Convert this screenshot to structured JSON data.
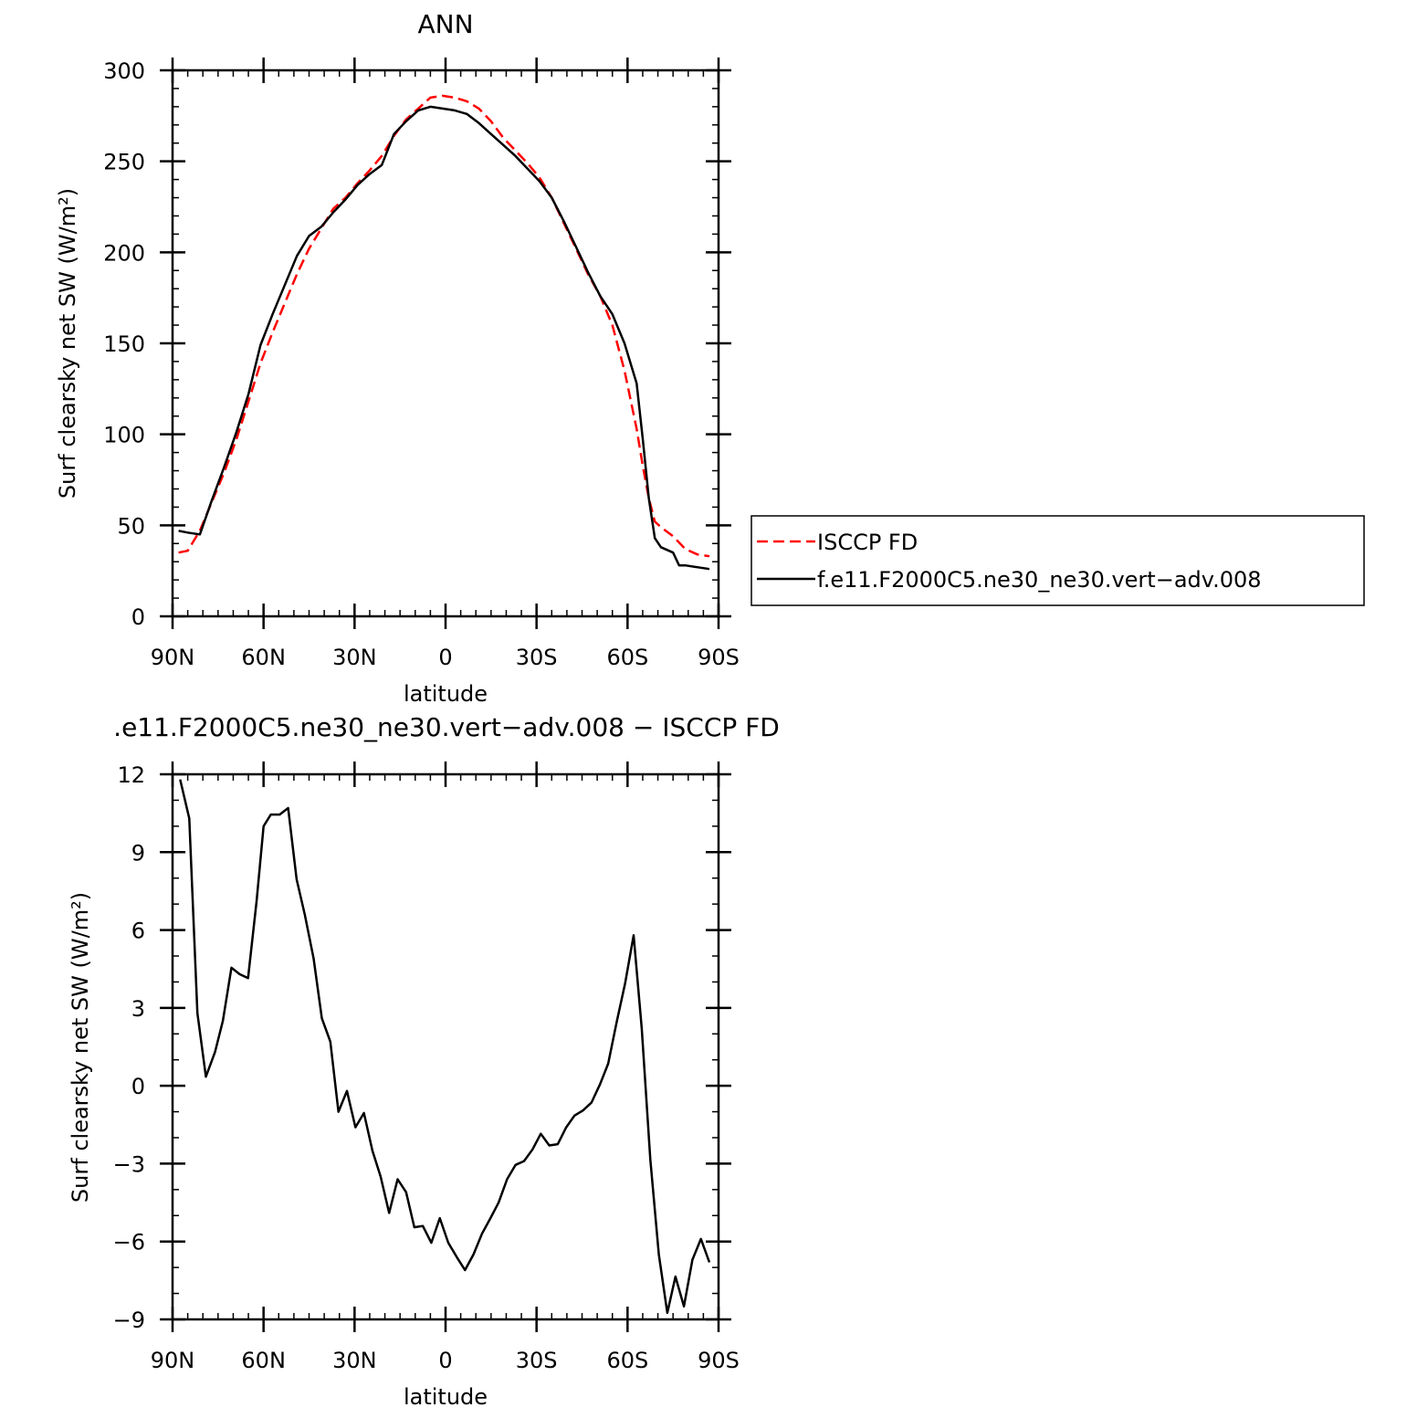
{
  "chart_data": [
    {
      "type": "line",
      "title": "ANN",
      "xlabel": "latitude",
      "ylabel": "Surf clearsky net SW (W/m²)",
      "x_axis_reversed": true,
      "xlim": [
        -90,
        90
      ],
      "ylim": [
        0,
        300
      ],
      "x_ticks": [
        {
          "value": 90,
          "label": "90N"
        },
        {
          "value": 60,
          "label": "60N"
        },
        {
          "value": 30,
          "label": "30N"
        },
        {
          "value": 0,
          "label": "0"
        },
        {
          "value": -30,
          "label": "30S"
        },
        {
          "value": -60,
          "label": "60S"
        },
        {
          "value": -90,
          "label": "90S"
        }
      ],
      "y_ticks": [
        {
          "value": 0,
          "label": "0"
        },
        {
          "value": 50,
          "label": "50"
        },
        {
          "value": 100,
          "label": "100"
        },
        {
          "value": 150,
          "label": "150"
        },
        {
          "value": 200,
          "label": "200"
        },
        {
          "value": 250,
          "label": "250"
        },
        {
          "value": 300,
          "label": "300"
        }
      ],
      "legend": {
        "placement": "right, outside plot, beside lower part"
      },
      "series": [
        {
          "name": "ISCCP FD",
          "color": "#ff0000",
          "dash": "dashed",
          "x": [
            88,
            85,
            81,
            77,
            73,
            69,
            65,
            61,
            57,
            53,
            49,
            45,
            41,
            37,
            33,
            29,
            25,
            21,
            17,
            13,
            9,
            5,
            1,
            -3,
            -7,
            -11,
            -15,
            -19,
            -23,
            -27,
            -31,
            -35,
            -39,
            -43,
            -47,
            -51,
            -55,
            -59,
            -63,
            -65,
            -67,
            -69,
            -71,
            -75,
            -79,
            -83,
            -87
          ],
          "y": [
            35,
            36,
            47,
            63,
            79,
            97,
            118,
            139,
            156,
            172,
            188,
            202,
            213,
            224,
            230,
            238,
            245,
            253,
            264,
            273,
            279,
            285,
            286,
            285,
            283,
            279,
            272,
            263,
            256,
            249,
            241,
            230,
            216,
            202,
            188,
            176,
            160,
            135,
            103,
            83,
            65,
            52,
            49,
            44,
            37,
            34,
            33
          ]
        },
        {
          "name": "f.e11.F2000C5.ne30_ne30.vert-adv.008",
          "color": "#000000",
          "dash": "solid",
          "x": [
            88,
            85,
            81,
            77,
            73,
            69,
            65,
            61,
            57,
            53,
            49,
            45,
            41,
            37,
            33,
            29,
            25,
            21,
            17,
            13,
            9,
            5,
            1,
            -3,
            -7,
            -11,
            -15,
            -19,
            -23,
            -27,
            -31,
            -35,
            -39,
            -43,
            -47,
            -51,
            -55,
            -59,
            -63,
            -65,
            -67,
            -69,
            -71,
            -75,
            -77,
            -79,
            -83,
            -87
          ],
          "y": [
            47,
            46,
            45,
            64,
            82,
            101,
            122,
            149,
            166,
            182,
            198,
            209,
            214,
            222,
            229,
            237,
            243,
            248,
            265,
            272,
            278,
            280,
            279,
            278,
            276,
            271,
            265,
            259,
            253,
            246,
            239,
            230,
            217,
            203,
            189,
            176,
            166,
            150,
            128,
            98,
            65,
            43,
            38,
            35,
            28,
            28,
            27,
            26
          ]
        }
      ]
    },
    {
      "type": "line",
      "title": ".e11.F2000C5.ne30_ne30.vert−adv.008 − ISCCP FD",
      "xlabel": "latitude",
      "ylabel": "Surf clearsky net SW (W/m²)",
      "x_axis_reversed": true,
      "xlim": [
        -90,
        90
      ],
      "ylim": [
        -9,
        12
      ],
      "x_ticks": [
        {
          "value": 90,
          "label": "90N"
        },
        {
          "value": 60,
          "label": "60N"
        },
        {
          "value": 30,
          "label": "30N"
        },
        {
          "value": 0,
          "label": "0"
        },
        {
          "value": -30,
          "label": "30S"
        },
        {
          "value": -60,
          "label": "60S"
        },
        {
          "value": -90,
          "label": "90S"
        }
      ],
      "y_ticks": [
        {
          "value": -9,
          "label": "−9"
        },
        {
          "value": -6,
          "label": "−6"
        },
        {
          "value": -3,
          "label": "−3"
        },
        {
          "value": 0,
          "label": "0"
        },
        {
          "value": 3,
          "label": "3"
        },
        {
          "value": 6,
          "label": "6"
        },
        {
          "value": 9,
          "label": "9"
        },
        {
          "value": 12,
          "label": "12"
        }
      ],
      "series": [
        {
          "color": "#000000",
          "dash": "solid",
          "x": [
            87.5,
            84.5,
            81.8,
            79.0,
            76.0,
            73.4,
            70.6,
            67.9,
            65.1,
            62.3,
            60.0,
            57.6,
            54.7,
            51.9,
            49.1,
            46.4,
            43.5,
            40.8,
            38.0,
            35.3,
            32.5,
            29.7,
            26.9,
            24.1,
            21.4,
            18.6,
            15.8,
            13.0,
            10.3,
            7.5,
            4.7,
            1.9,
            -0.9,
            -3.7,
            -6.4,
            -9.2,
            -12.0,
            -14.8,
            -17.5,
            -20.3,
            -23.1,
            -25.9,
            -28.7,
            -31.4,
            -34.2,
            -37.0,
            -39.8,
            -42.5,
            -45.3,
            -48.1,
            -50.9,
            -53.6,
            -56.4,
            -59.2,
            -62.0,
            -64.7,
            -67.5,
            -70.3,
            -73.1,
            -75.8,
            -78.6,
            -81.4,
            -84.2,
            -87.0
          ],
          "y": [
            11.8,
            10.3,
            2.8,
            0.35,
            1.3,
            2.5,
            4.55,
            4.3,
            4.15,
            7.1,
            10.0,
            10.45,
            10.45,
            10.7,
            7.95,
            6.6,
            4.9,
            2.6,
            1.7,
            -1.0,
            -0.2,
            -1.6,
            -1.05,
            -2.5,
            -3.5,
            -4.9,
            -3.6,
            -4.1,
            -5.45,
            -5.4,
            -6.05,
            -5.1,
            -6.05,
            -6.6,
            -7.1,
            -6.5,
            -5.7,
            -5.1,
            -4.5,
            -3.6,
            -3.05,
            -2.9,
            -2.45,
            -1.85,
            -2.3,
            -2.25,
            -1.6,
            -1.15,
            -0.95,
            -0.65,
            0.05,
            0.85,
            2.45,
            3.95,
            5.8,
            2.2,
            -2.85,
            -6.5,
            -8.75,
            -7.35,
            -8.5,
            -6.7,
            -5.9,
            -6.8
          ]
        }
      ]
    }
  ],
  "legend_names": [
    "ISCCP FD",
    "f.e11.F2000C5.ne30_ne30.vert−adv.008"
  ]
}
